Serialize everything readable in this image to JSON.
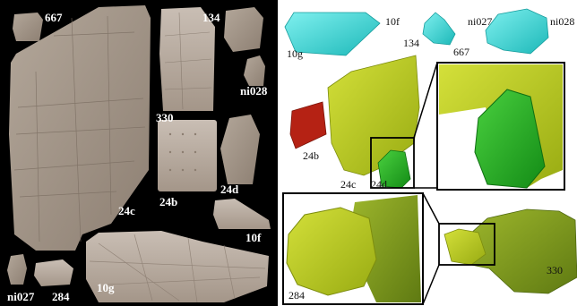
{
  "left_panel": {
    "labels": {
      "f667": "667",
      "f134": "134",
      "ni028": "ni028",
      "f330": "330",
      "f24c": "24c",
      "f24b": "24b",
      "f24d": "24d",
      "f10f": "10f",
      "ni027": "ni027",
      "f284": "284",
      "f10g": "10g"
    }
  },
  "right_panel": {
    "labels": {
      "f10f": "10f",
      "f10g": "10g",
      "f134": "134",
      "f667": "667",
      "ni027": "ni027",
      "ni028": "ni028",
      "f24b": "24b",
      "f24c": "24c",
      "f24d": "24d",
      "f284": "284",
      "f330": "330"
    }
  },
  "colors": {
    "left_background": "#000000",
    "stone": "#a59688",
    "cyan": "#33d6d6",
    "lime": "#b5c81e",
    "green": "#1fae22",
    "red": "#b52214",
    "olive": "#7f9a1e"
  }
}
